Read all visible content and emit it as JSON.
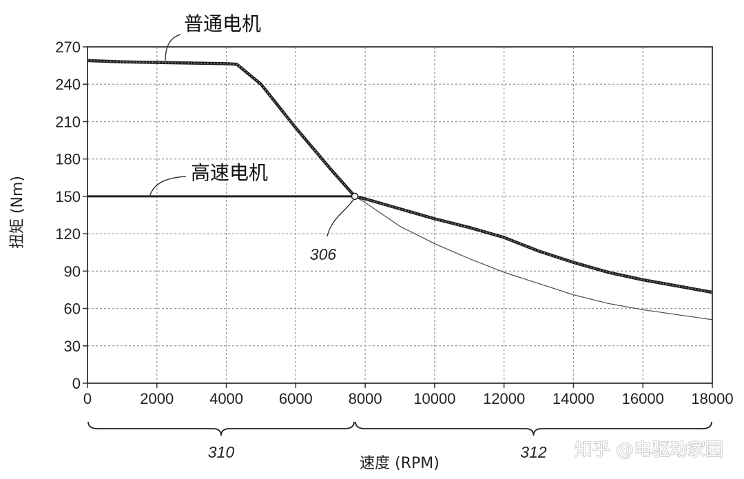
{
  "chart_data": {
    "type": "line",
    "xlabel": "速度 (RPM)",
    "ylabel": "扭矩 (Nm)",
    "xlim": [
      0,
      18000
    ],
    "ylim": [
      0,
      270
    ],
    "x_ticks": [
      "0",
      "2000",
      "4000",
      "6000",
      "8000",
      "10000",
      "12000",
      "14000",
      "16000",
      "18000"
    ],
    "y_ticks": [
      "0",
      "30",
      "60",
      "90",
      "120",
      "150",
      "180",
      "210",
      "240",
      "270"
    ],
    "grid": true,
    "series": [
      {
        "name": "普通电机",
        "style": "dotted-thick",
        "x": [
          0,
          1000,
          2000,
          3000,
          4000,
          4300,
          5000,
          6000,
          7000,
          7700,
          8000,
          9000,
          10000,
          11000,
          12000,
          13000,
          14000,
          15000,
          16000,
          17000,
          18000
        ],
        "y": [
          259,
          258,
          257.5,
          257,
          256.5,
          256,
          240,
          205,
          172,
          150,
          148,
          140,
          132,
          125,
          117,
          106,
          97,
          89,
          83,
          78,
          73
        ]
      },
      {
        "name": "高速电机",
        "style": "solid",
        "x": [
          0,
          1000,
          2000,
          3000,
          4000,
          5000,
          6000,
          7000,
          7700,
          8000,
          9000,
          10000,
          11000,
          12000,
          13000,
          14000,
          15000,
          16000,
          17000,
          18000
        ],
        "y": [
          150,
          150,
          150,
          150,
          150,
          150,
          150,
          150,
          150,
          145,
          126,
          112,
          100,
          89,
          80,
          71,
          64,
          59,
          55,
          51
        ]
      }
    ],
    "annotations": [
      {
        "text": "306",
        "x": 7700,
        "y": 150
      }
    ],
    "ranges": [
      {
        "text": "310",
        "from": 0,
        "to": 7700
      },
      {
        "text": "312",
        "from": 7700,
        "to": 18000
      }
    ]
  },
  "watermark": "知乎 @电驱动家园",
  "colors": {
    "grid": "#9a9a9a",
    "axis": "#333333",
    "line": "#222222"
  }
}
